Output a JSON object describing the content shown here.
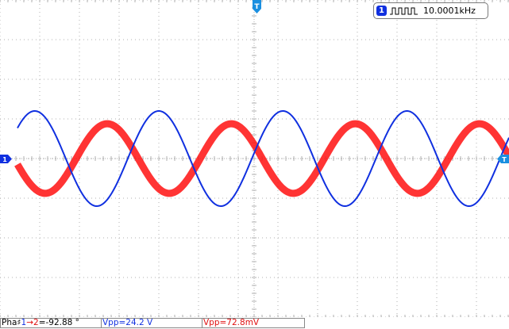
{
  "display": {
    "frequency": {
      "channel": "1",
      "value": "10.0001kHz",
      "icon": "square-wave-icon"
    },
    "trigger_marker": {
      "label": "T",
      "icon": "trigger-position-marker"
    },
    "ch1_marker": {
      "label": "1",
      "icon": "ground-marker-left"
    },
    "trigger_level_marker": {
      "label": "T",
      "icon": "trigger-level-marker-right"
    }
  },
  "waveforms": {
    "colors": {
      "ch1": "#1030e0",
      "ch2": "#ff1010",
      "grid": "#b0b0b0"
    },
    "ch1": {
      "period_divs": 3.125,
      "amplitude_divs": 3.0,
      "offset_divs": 0.0
    },
    "ch2": {
      "period_divs": 3.125,
      "amplitude_divs": 1.95,
      "offset_divs": 0.0,
      "phase_deg": -92.88
    }
  },
  "measurements": {
    "phase": {
      "prefix": "Pha",
      "glyph": "♯",
      "ch_a": "1",
      "arrow": "→",
      "ch_b": "2",
      "value": "=-92.88 °"
    },
    "vpp_ch1": "Vpp=24.2 V",
    "vpp_ch2": "Vpp=72.8mV"
  }
}
